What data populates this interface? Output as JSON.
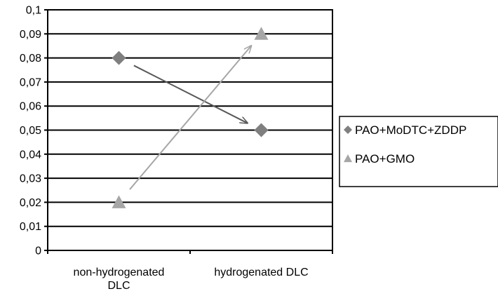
{
  "chart_data": {
    "type": "scatter",
    "categories": [
      "non-hydrogenated DLC",
      "hydrogenated DLC"
    ],
    "category_lines": [
      [
        "non-hydrogenated",
        "DLC"
      ],
      [
        "hydrogenated DLC"
      ]
    ],
    "series": [
      {
        "name": "PAO+MoDTC+ZDDP",
        "values": [
          0.08,
          0.05
        ],
        "marker": "diamond",
        "color": "#7f7f7f",
        "arrow_color": "#595959"
      },
      {
        "name": "PAO+GMO",
        "values": [
          0.02,
          0.09
        ],
        "marker": "triangle",
        "color": "#a6a6a6",
        "arrow_color": "#a6a6a6"
      }
    ],
    "ylim": [
      0,
      0.1
    ],
    "yticks": [
      "0",
      "0,01",
      "0,02",
      "0,03",
      "0,04",
      "0,05",
      "0,06",
      "0,07",
      "0,08",
      "0,09",
      "0,1"
    ],
    "grid": true,
    "legend_position": "right",
    "title": "",
    "xlabel": "",
    "ylabel": ""
  }
}
